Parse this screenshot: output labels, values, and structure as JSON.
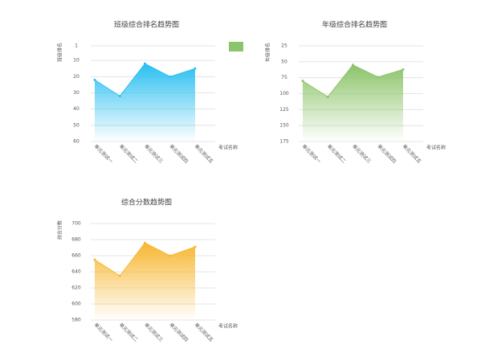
{
  "chart_data": [
    {
      "type": "line",
      "title": "班级综合排名趋势图",
      "y_label": "班级排名",
      "x_label": "考试名称",
      "categories": [
        "单元测试一",
        "单元测试二",
        "单元测试三",
        "单元测试四",
        "单元测试五"
      ],
      "series": [
        {
          "color": "#29bff0",
          "values": [
            22,
            32,
            12,
            20,
            15
          ]
        }
      ],
      "ylim": [
        1,
        60
      ],
      "yticks": [
        1,
        10,
        20,
        30,
        40,
        50,
        60
      ],
      "y_inverted": true,
      "grid": true
    },
    {
      "type": "line",
      "title": "年级综合排名趋势图",
      "y_label": "年级排名",
      "x_label": "考试名称",
      "categories": [
        "单元测试一",
        "单元测试二",
        "单元测试三",
        "单元测试四",
        "单元测试五"
      ],
      "series": [
        {
          "color": "#8cc46a",
          "values": [
            80,
            105,
            55,
            74,
            62
          ]
        }
      ],
      "ylim": [
        25,
        175
      ],
      "yticks": [
        25,
        50,
        75,
        100,
        125,
        150,
        175
      ],
      "y_inverted": true,
      "grid": true
    },
    {
      "type": "line",
      "title": "综合分数趋势图",
      "y_label": "综合分数",
      "x_label": "考试名称",
      "categories": [
        "单元测试一",
        "单元测试二",
        "单元测试三",
        "单元测试四",
        "单元测试五"
      ],
      "series": [
        {
          "color": "#f7b733",
          "values": [
            655,
            635,
            676,
            660,
            671
          ]
        }
      ],
      "ylim": [
        580,
        700
      ],
      "yticks": [
        580,
        600,
        620,
        640,
        660,
        680,
        700
      ],
      "y_inverted": false,
      "grid": true
    }
  ]
}
